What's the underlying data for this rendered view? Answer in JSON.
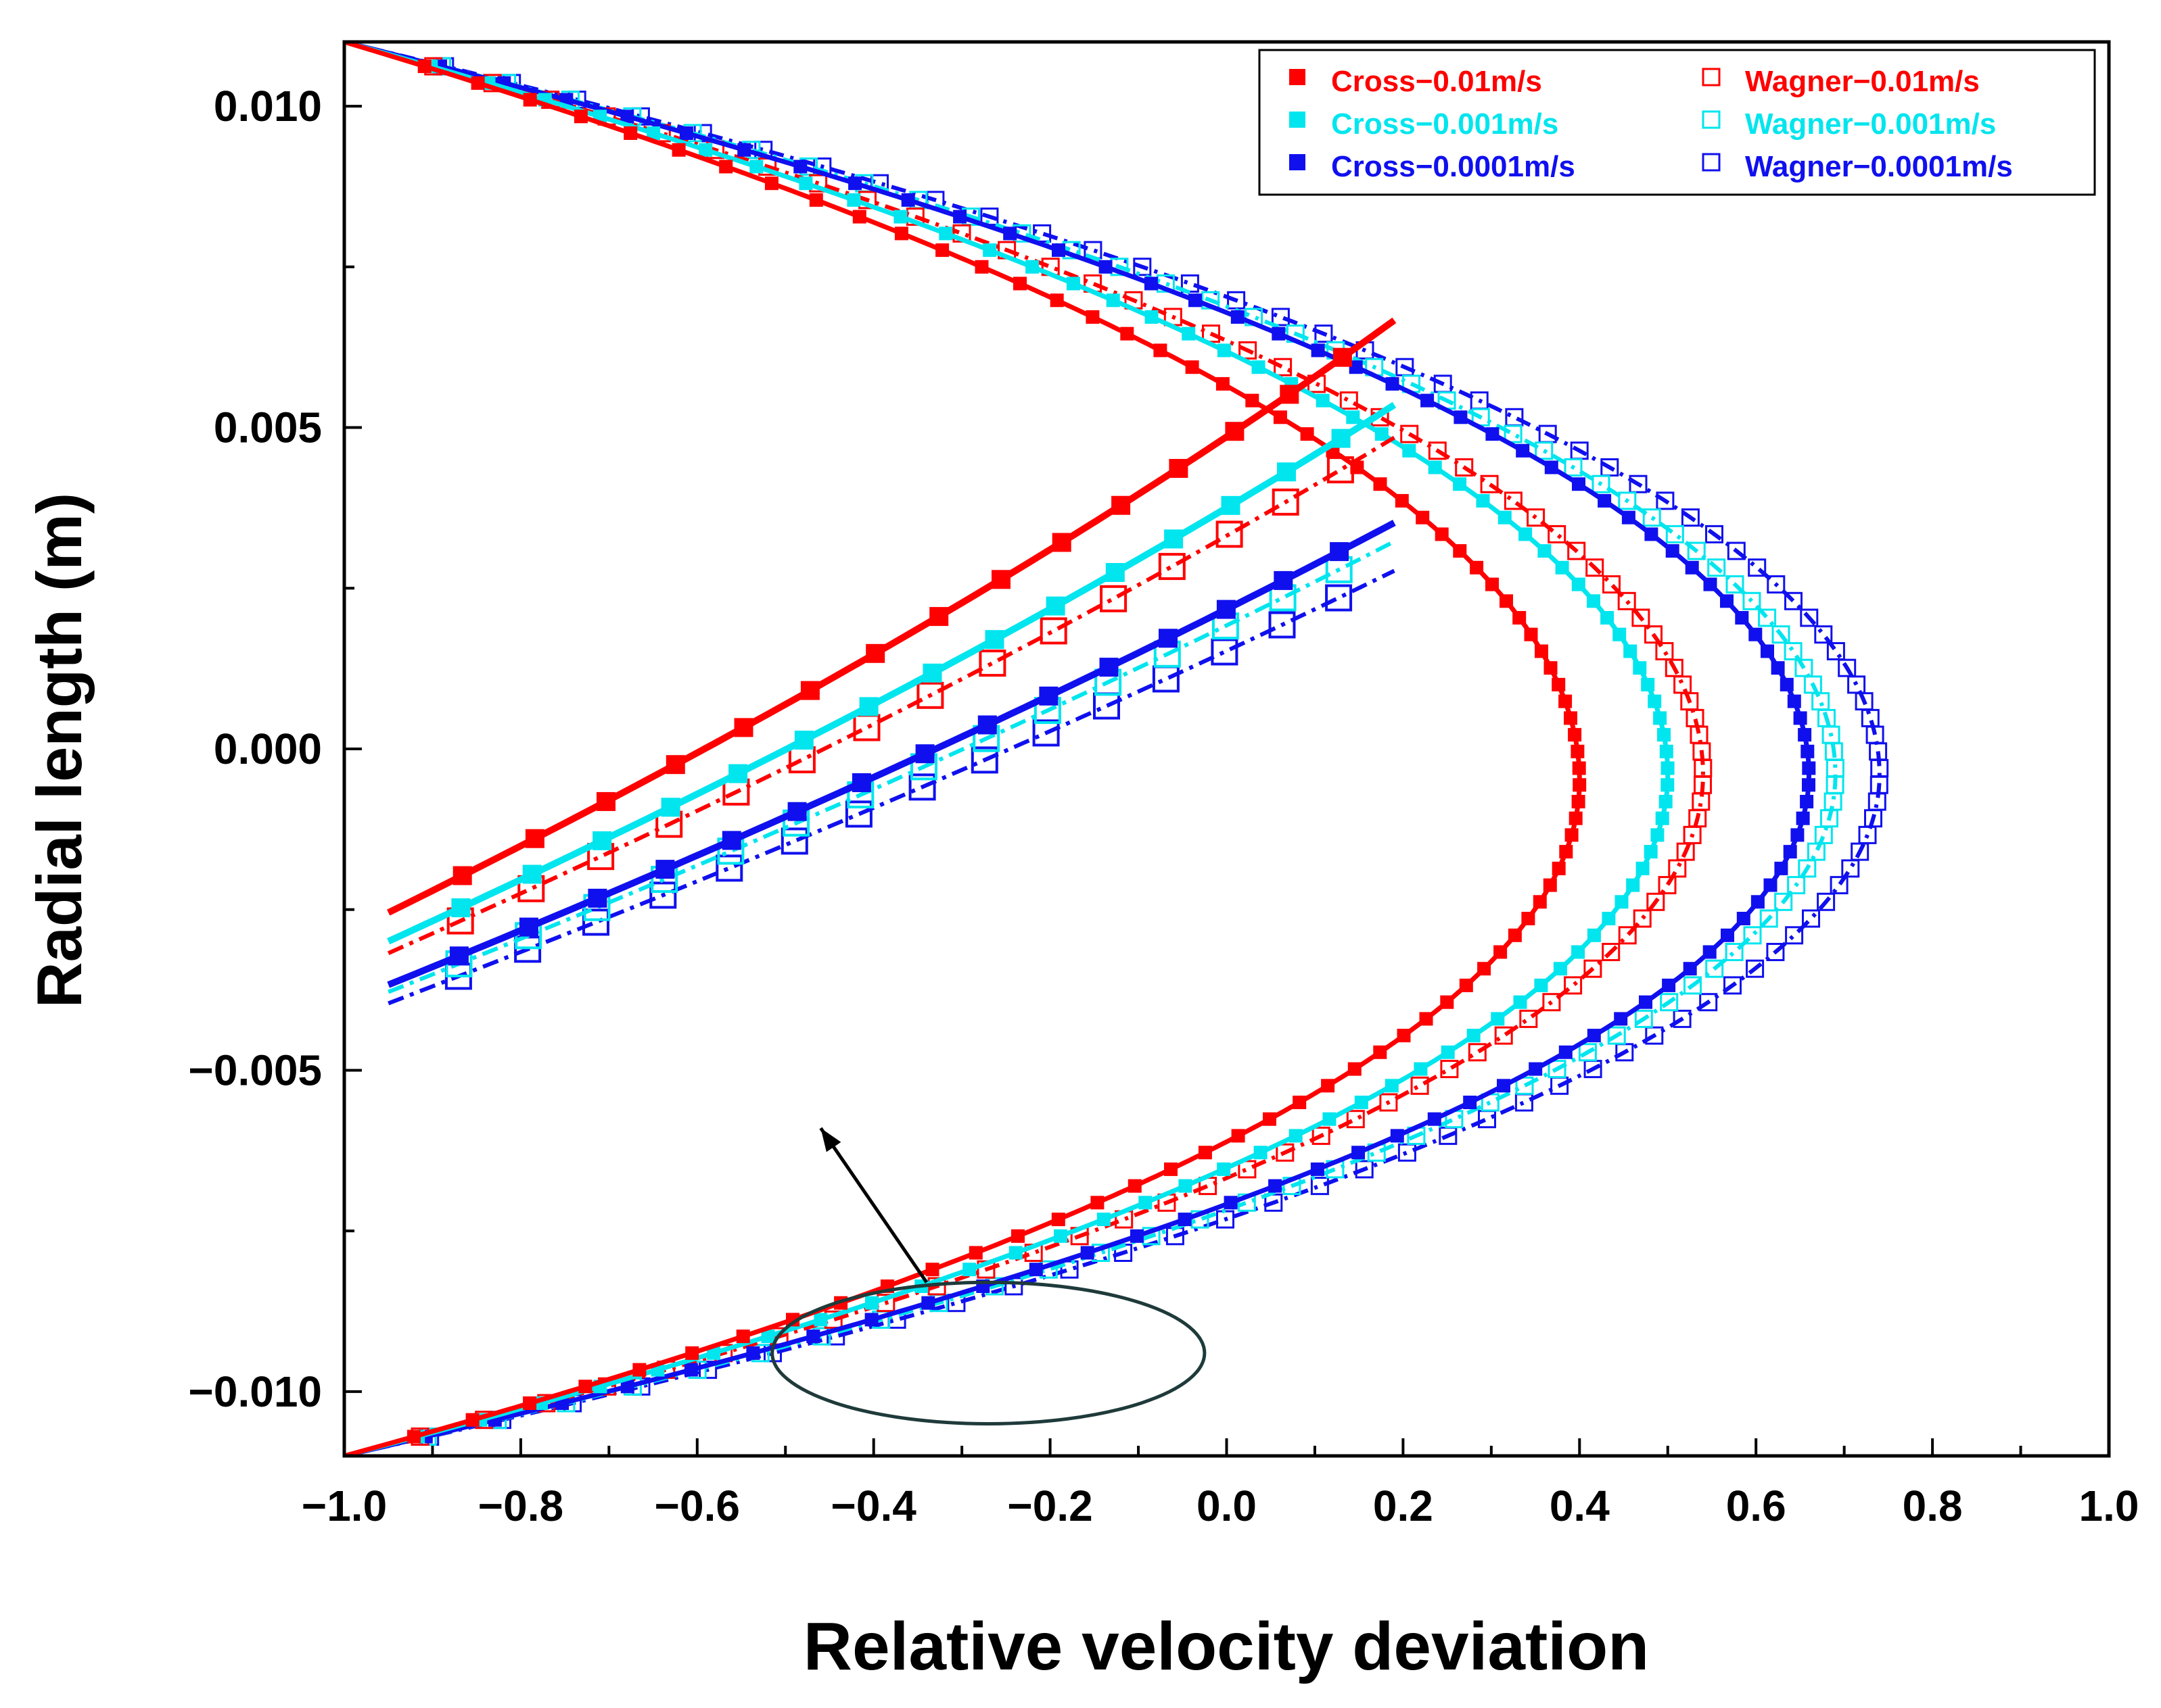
{
  "chart_data": {
    "type": "scatter",
    "xlabel": "Relative velocity deviation",
    "ylabel": "Radial length (m)",
    "xlim": [
      -1.0,
      1.0
    ],
    "ylim": [
      -0.011,
      0.011
    ],
    "x_ticks": [
      -1.0,
      -0.8,
      -0.6,
      -0.4,
      -0.2,
      0.0,
      0.2,
      0.4,
      0.6,
      0.8,
      1.0
    ],
    "x_tick_labels": [
      "−1.0",
      "−0.8",
      "−0.6",
      "−0.4",
      "−0.2",
      "0.0",
      "0.2",
      "0.4",
      "0.6",
      "0.8",
      "1.0"
    ],
    "y_ticks": [
      -0.01,
      -0.005,
      0.0,
      0.005,
      0.01
    ],
    "y_tick_labels": [
      "−0.010",
      "−0.005",
      "0.000",
      "0.005",
      "0.010"
    ],
    "legend_position": "top-right",
    "series": [
      {
        "name": "Cross−0.01m/s",
        "color": "#ff0000",
        "marker": "filled-square",
        "peak_x": 0.4,
        "y_peak": -0.0005,
        "wall_x": -1.0
      },
      {
        "name": "Cross−0.001m/s",
        "color": "#00e5ee",
        "marker": "filled-square",
        "peak_x": 0.5,
        "y_peak": -0.0004,
        "wall_x": -1.0
      },
      {
        "name": "Cross−0.0001m/s",
        "color": "#1010ee",
        "marker": "filled-square",
        "peak_x": 0.66,
        "y_peak": -0.0004,
        "wall_x": -1.0
      },
      {
        "name": "Wagner−0.01m/s",
        "color": "#ff0000",
        "marker": "open-square",
        "peak_x": 0.54,
        "y_peak": -0.0004,
        "wall_x": -1.0
      },
      {
        "name": "Wagner−0.001m/s",
        "color": "#00e5ee",
        "marker": "open-square",
        "peak_x": 0.69,
        "y_peak": -0.0004,
        "wall_x": -1.0
      },
      {
        "name": "Wagner−0.0001m/s",
        "color": "#1010ee",
        "marker": "open-square",
        "peak_x": 0.74,
        "y_peak": -0.0004,
        "wall_x": -1.0
      }
    ],
    "annotations": [
      {
        "type": "ellipse",
        "description": "highlighted lower-branch region",
        "center_x": -0.27,
        "center_y": -0.0094,
        "x_radius": 0.245,
        "y_radius": 0.0011
      },
      {
        "type": "inset",
        "description": "magnified view of highlighted region",
        "x_range": [
          -0.95,
          0.19
        ],
        "y_range": [
          -0.0062,
          -0.0017
        ]
      },
      {
        "type": "arrow",
        "from_x": -0.34,
        "from_y": -0.0083,
        "to_x": -0.46,
        "to_y": -0.0059
      }
    ]
  }
}
